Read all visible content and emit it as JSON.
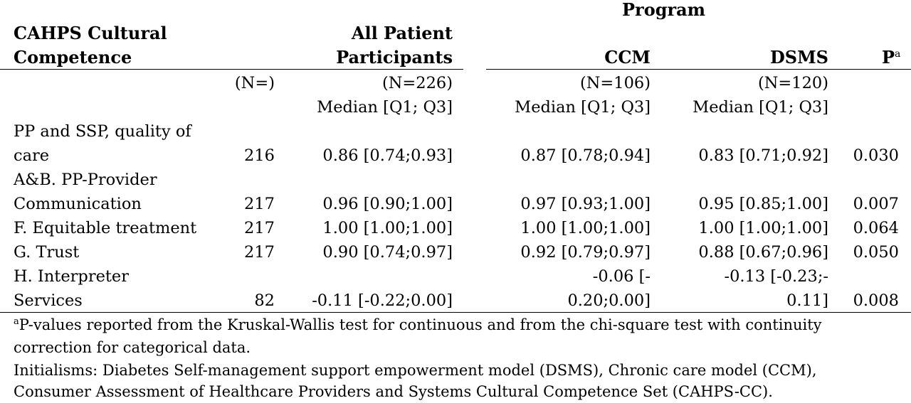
{
  "table": {
    "program_header": "Program",
    "columns": {
      "measure_line1": "CAHPS Cultural",
      "measure_line2": "Competence",
      "all_line1": "All Patient",
      "all_line2": "Participants",
      "ccm": "CCM",
      "dsms": "DSMS",
      "p": "P",
      "p_sup": "a"
    },
    "subheader_n": {
      "n": "(N=)",
      "all": "(N=226)",
      "ccm": "(N=106)",
      "dsms": "(N=120)"
    },
    "subheader_stat": {
      "all": "Median [Q1; Q3]",
      "ccm": "Median [Q1; Q3]",
      "dsms": "Median [Q1; Q3]"
    },
    "rows": [
      {
        "label_line1": "PP and SSP, quality of",
        "label_line2": "care",
        "n": "216",
        "all": "0.86 [0.74;0.93]",
        "ccm": "0.87 [0.78;0.94]",
        "dsms": "0.83 [0.71;0.92]",
        "p": "0.030"
      },
      {
        "label_line1": "A&B. PP-Provider",
        "label_line2": "Communication",
        "n": "217",
        "all": "0.96 [0.90;1.00]",
        "ccm": "0.97 [0.93;1.00]",
        "dsms": "0.95 [0.85;1.00]",
        "p": "0.007"
      },
      {
        "label": "F. Equitable treatment",
        "n": "217",
        "all": "1.00 [1.00;1.00]",
        "ccm": "1.00 [1.00;1.00]",
        "dsms": "1.00 [1.00;1.00]",
        "p": "0.064"
      },
      {
        "label": "G. Trust",
        "n": "217",
        "all": "0.90 [0.74;0.97]",
        "ccm": "0.92 [0.79;0.97]",
        "dsms": "0.88 [0.67;0.96]",
        "p": "0.050"
      },
      {
        "label_line1": "H. Interpreter",
        "label_line2": "Services",
        "n": "82",
        "all": "-0.11 [-0.22;0.00]",
        "ccm_line1": "-0.06 [-",
        "ccm_line2": "0.20;0.00]",
        "dsms_line1": "-0.13 [-0.23;-",
        "dsms_line2": "0.11]",
        "p": "0.008"
      }
    ]
  },
  "footnotes": {
    "note_sup": "a",
    "note_a_line1": "P-values reported from the Kruskal-Wallis test for continuous and from the chi-square test with continuity",
    "note_a_line2": "correction for categorical data.",
    "initialisms_line1": "Initialisms: Diabetes Self-management support empowerment model (DSMS), Chronic care model (CCM),",
    "initialisms_line2": "Consumer Assessment of Healthcare Providers and Systems Cultural Competence Set (CAHPS-CC)."
  }
}
